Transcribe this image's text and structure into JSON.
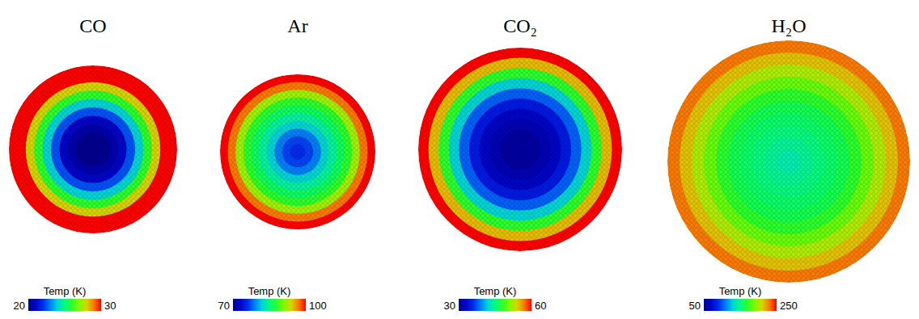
{
  "chart_data": [
    {
      "type": "heatmap",
      "title": "CO",
      "x": [
        0.1,
        0.2,
        0.3,
        0.4,
        0.5,
        0.6,
        0.7,
        0.8,
        0.9,
        1.0
      ],
      "values": [
        20,
        20,
        20.5,
        21,
        22.5,
        24,
        26,
        28,
        30,
        30
      ],
      "colorbar": {
        "title": "Temp (K)",
        "range": [
          20,
          30
        ],
        "ticks": [
          20,
          30
        ]
      }
    },
    {
      "type": "heatmap",
      "title": "Ar",
      "x": [
        0.1,
        0.2,
        0.3,
        0.4,
        0.5,
        0.6,
        0.7,
        0.8,
        0.9,
        1.0
      ],
      "values": [
        76,
        77,
        79,
        82,
        84,
        86,
        88,
        92,
        97,
        100
      ],
      "colorbar": {
        "title": "Temp (K)",
        "range": [
          70,
          100
        ],
        "ticks": [
          70,
          100
        ]
      }
    },
    {
      "type": "heatmap",
      "title": "CO₂",
      "x": [
        0.1,
        0.2,
        0.3,
        0.4,
        0.5,
        0.6,
        0.7,
        0.8,
        0.9,
        1.0
      ],
      "values": [
        31,
        31,
        32,
        33,
        35,
        38,
        42,
        48,
        55,
        60
      ],
      "colorbar": {
        "title": "Temp (K)",
        "range": [
          30,
          60
        ],
        "ticks": [
          30,
          60
        ]
      }
    },
    {
      "type": "heatmap",
      "title": "H₂O",
      "x": [
        0.1,
        0.2,
        0.3,
        0.4,
        0.5,
        0.6,
        0.7,
        0.8,
        0.9,
        1.0
      ],
      "values": [
        140,
        145,
        150,
        155,
        160,
        170,
        185,
        200,
        215,
        230
      ],
      "colorbar": {
        "title": "Temp (K)",
        "range": [
          50,
          250
        ],
        "ticks": [
          50,
          250
        ]
      }
    }
  ]
}
